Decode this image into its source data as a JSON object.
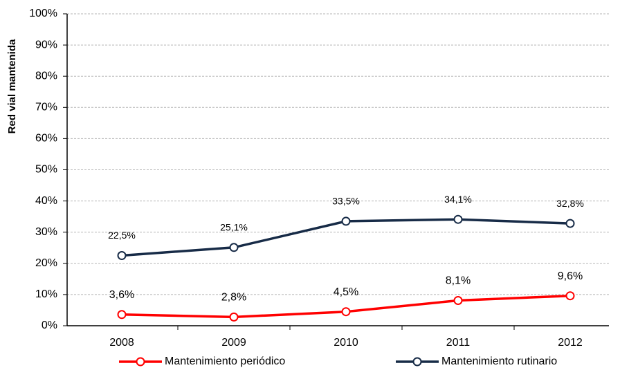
{
  "chart_data": {
    "type": "line",
    "y_label": "Red vial mantenida",
    "categories": [
      "2008",
      "2009",
      "2010",
      "2011",
      "2012"
    ],
    "series": [
      {
        "name": "Mantenimiento periódico",
        "color": "#ff0000",
        "values": [
          3.6,
          2.8,
          4.5,
          8.1,
          9.6
        ],
        "value_labels": [
          "3,6%",
          "2,8%",
          "4,5%",
          "8,1%",
          "9,6%"
        ]
      },
      {
        "name": "Mantenimiento rutinario",
        "color": "#172b47",
        "values": [
          22.5,
          25.1,
          33.5,
          34.1,
          32.8
        ],
        "value_labels": [
          "22,5%",
          "25,1%",
          "33,5%",
          "34,1%",
          "32,8%"
        ]
      }
    ],
    "ylim": [
      0,
      100
    ],
    "yticks": [
      {
        "value": 0,
        "label": "0%"
      },
      {
        "value": 10,
        "label": "10%"
      },
      {
        "value": 20,
        "label": "20%"
      },
      {
        "value": 30,
        "label": "30%"
      },
      {
        "value": 40,
        "label": "40%"
      },
      {
        "value": 50,
        "label": "50%"
      },
      {
        "value": 60,
        "label": "60%"
      },
      {
        "value": 70,
        "label": "70%"
      },
      {
        "value": 80,
        "label": "80%"
      },
      {
        "value": 90,
        "label": "90%"
      },
      {
        "value": 100,
        "label": "100%"
      }
    ],
    "grid": true
  }
}
